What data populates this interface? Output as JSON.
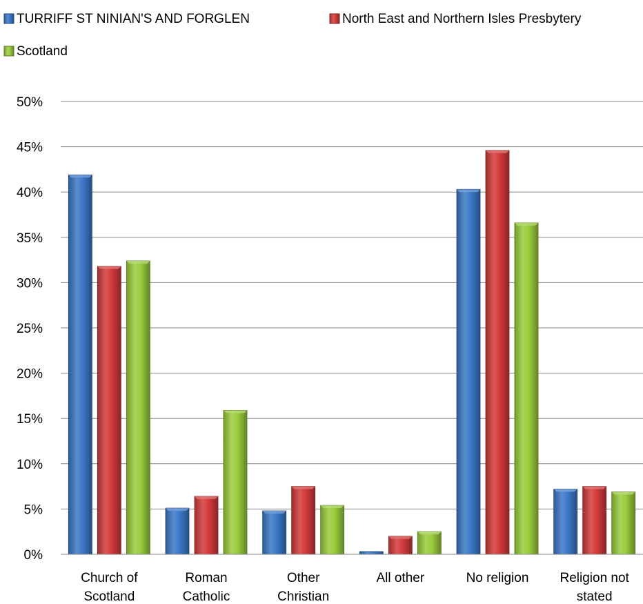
{
  "chart_data": {
    "type": "bar",
    "categories": [
      [
        "Church of",
        "Scotland"
      ],
      [
        "Roman",
        "Catholic"
      ],
      [
        "Other",
        "Christian"
      ],
      [
        "All other"
      ],
      [
        "No religion"
      ],
      [
        "Religion not",
        "stated"
      ]
    ],
    "series": [
      {
        "name": "TURRIFF ST NINIAN'S AND FORGLEN",
        "values": [
          41.9,
          5.1,
          4.8,
          0.3,
          40.3,
          7.2
        ],
        "color": "#3b78c8"
      },
      {
        "name": "North East and Northern Isles Presbytery",
        "values": [
          31.8,
          6.4,
          7.5,
          2.0,
          44.6,
          7.5
        ],
        "color": "#d43a3a"
      },
      {
        "name": "Scotland",
        "values": [
          32.4,
          15.9,
          5.4,
          2.5,
          36.6,
          6.9
        ],
        "color": "#9acd3c"
      }
    ],
    "yticks": [
      "0%",
      "5%",
      "10%",
      "15%",
      "20%",
      "25%",
      "30%",
      "35%",
      "40%",
      "45%",
      "50%"
    ],
    "ylim": [
      0,
      50
    ],
    "grid": true,
    "legend_position": "top-left",
    "title": "",
    "xlabel": "",
    "ylabel": ""
  }
}
